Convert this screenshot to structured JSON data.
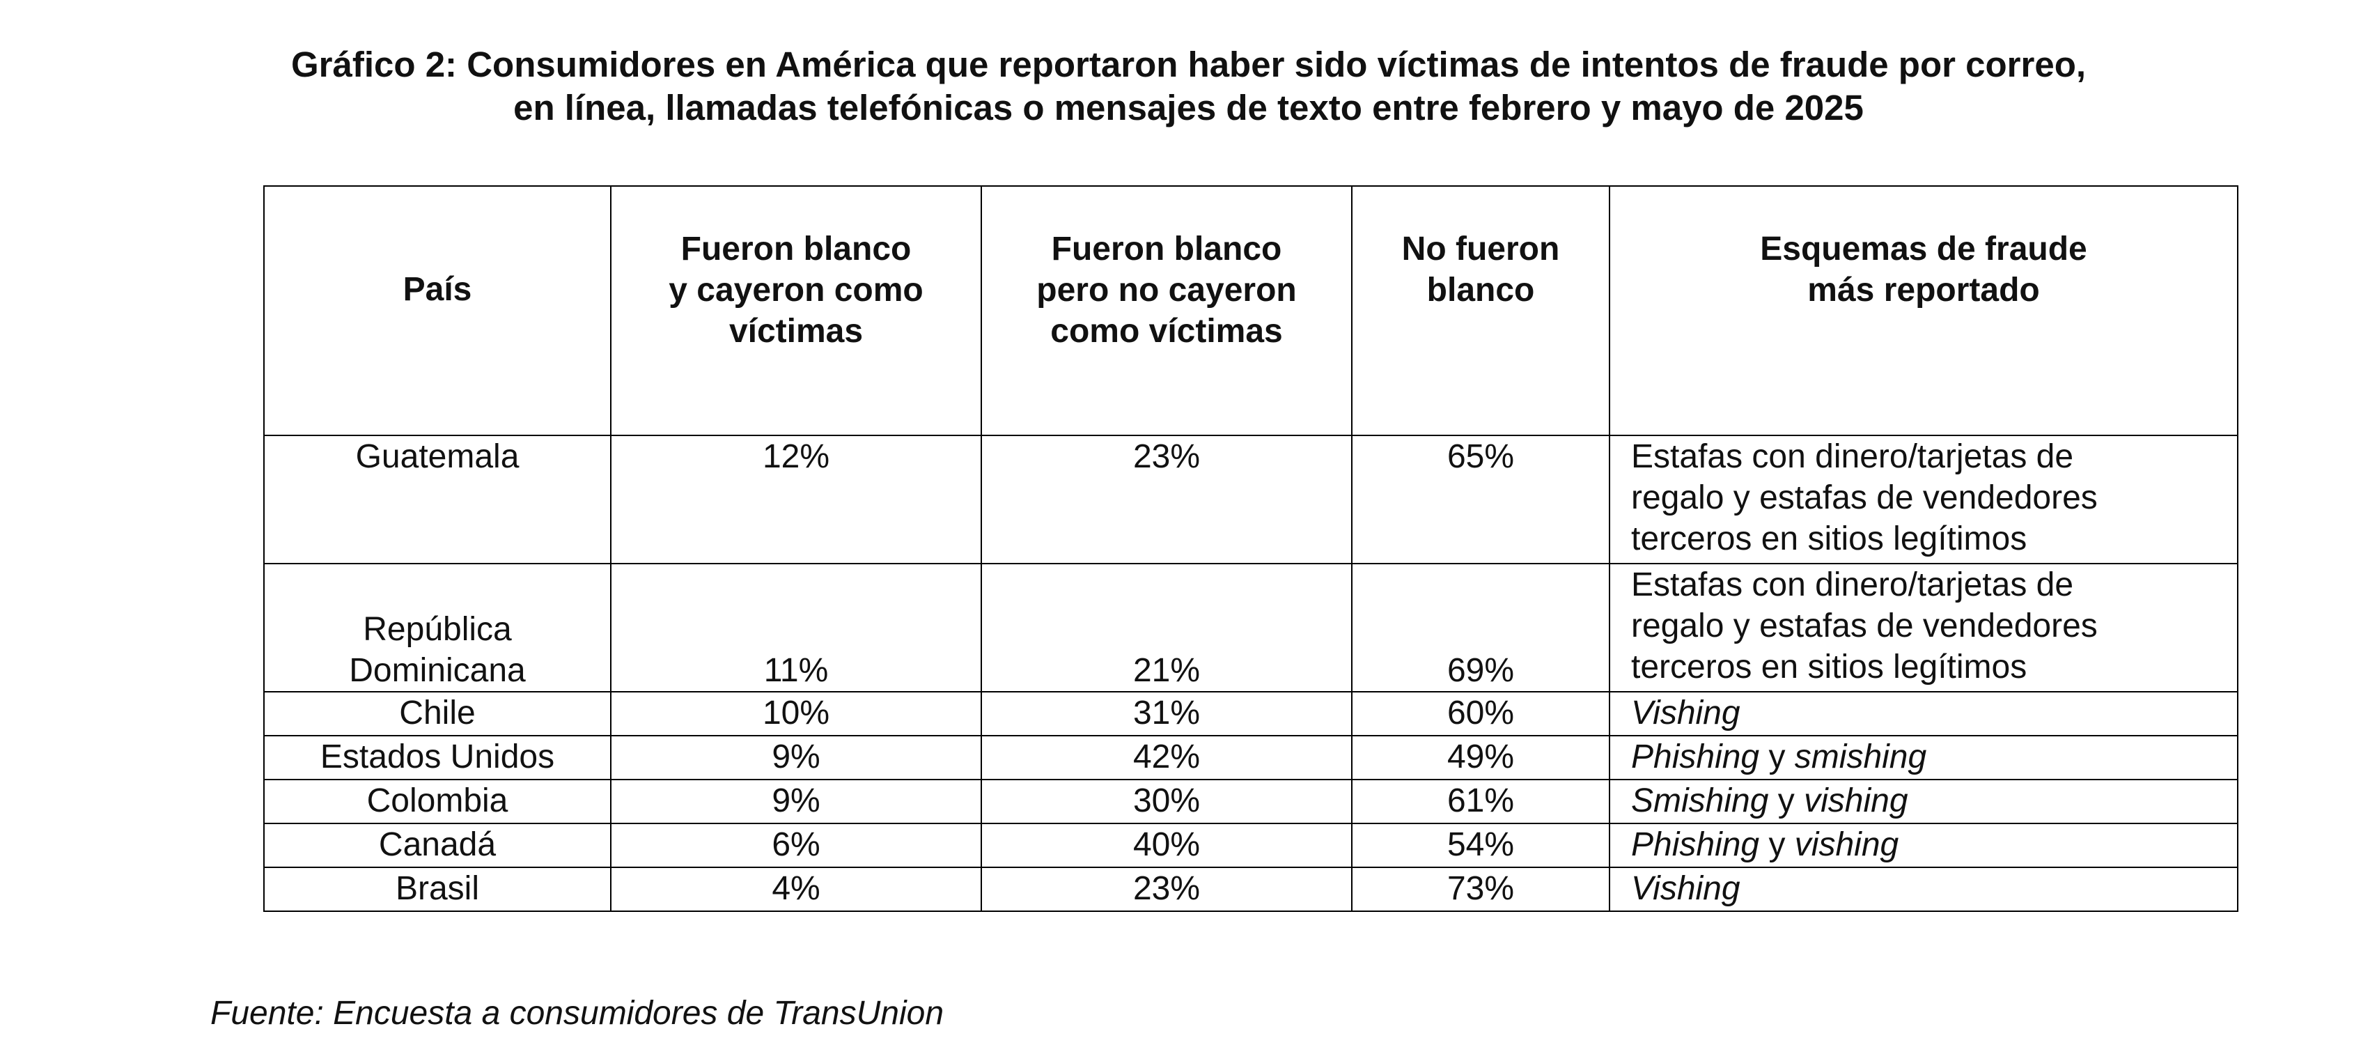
{
  "title": {
    "line1": "Gráfico 2: Consumidores en América que reportaron haber sido víctimas de intentos de fraude por correo,",
    "line2": "en línea, llamadas telefónicas o mensajes de texto entre febrero y mayo de 2025"
  },
  "table": {
    "headers": {
      "country": "País",
      "targeted_victims": [
        "Fueron blanco",
        "y cayeron como",
        "víctimas"
      ],
      "targeted_not_victims": [
        "Fueron blanco",
        "pero no cayeron",
        "como víctimas"
      ],
      "not_targeted": [
        "No fueron",
        "blanco"
      ],
      "schemes": [
        "Esquemas de fraude",
        "más reportado"
      ]
    },
    "rows": [
      {
        "country": [
          "Guatemala"
        ],
        "targeted_victims": "12%",
        "targeted_not_victims": "23%",
        "not_targeted": "65%",
        "scheme_lines": [
          "Estafas con dinero/tarjetas de",
          "regalo y estafas de vendedores",
          "terceros en sitios legítimos"
        ]
      },
      {
        "country": [
          "República",
          "Dominicana"
        ],
        "targeted_victims": "11%",
        "targeted_not_victims": "21%",
        "not_targeted": "69%",
        "scheme_lines": [
          "Estafas con dinero/tarjetas de",
          "regalo y estafas de vendedores",
          "terceros en sitios legítimos"
        ]
      },
      {
        "country": [
          "Chile"
        ],
        "targeted_victims": "10%",
        "targeted_not_victims": "31%",
        "not_targeted": "60%",
        "scheme_parts": [
          {
            "text": "Vishing",
            "italic": true
          }
        ]
      },
      {
        "country": [
          "Estados Unidos"
        ],
        "targeted_victims": "9%",
        "targeted_not_victims": "42%",
        "not_targeted": "49%",
        "scheme_parts": [
          {
            "text": "Phishing",
            "italic": true
          },
          {
            "text": " y ",
            "italic": false
          },
          {
            "text": "smishing",
            "italic": true
          }
        ]
      },
      {
        "country": [
          "Colombia"
        ],
        "targeted_victims": "9%",
        "targeted_not_victims": "30%",
        "not_targeted": "61%",
        "scheme_parts": [
          {
            "text": "Smishing",
            "italic": true
          },
          {
            "text": " y ",
            "italic": false
          },
          {
            "text": "vishing",
            "italic": true
          }
        ]
      },
      {
        "country": [
          "Canadá"
        ],
        "targeted_victims": "6%",
        "targeted_not_victims": "40%",
        "not_targeted": "54%",
        "scheme_parts": [
          {
            "text": "Phishing",
            "italic": true
          },
          {
            "text": " y ",
            "italic": false
          },
          {
            "text": "vishing",
            "italic": true
          }
        ]
      },
      {
        "country": [
          "Brasil"
        ],
        "targeted_victims": "4%",
        "targeted_not_victims": "23%",
        "not_targeted": "73%",
        "scheme_parts": [
          {
            "text": "Vishing",
            "italic": true
          }
        ]
      }
    ]
  },
  "source": "Fuente: Encuesta a consumidores de TransUnion"
}
